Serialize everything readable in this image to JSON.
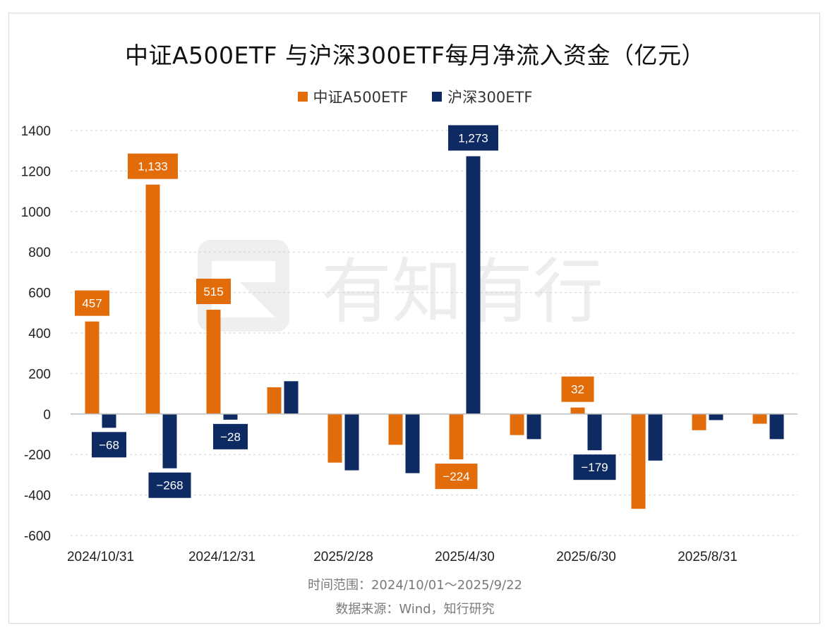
{
  "title": "中证A500ETF 与沪深300ETF每月净流入资金（亿元）",
  "footer": {
    "time_range": "时间范围：2024/10/01～2025/9/22",
    "source": "数据来源：Wind，知行研究"
  },
  "watermark": {
    "text": "有知有行"
  },
  "colors": {
    "a500": "#E36C0A",
    "hs300": "#0D2A63",
    "grid": "#d0d0d0",
    "axis": "#bdbdbd"
  },
  "chart_data": {
    "type": "bar",
    "title": "中证A500ETF 与沪深300ETF每月净流入资金（亿元）",
    "ylim": [
      -600,
      1400
    ],
    "yticks": [
      1400,
      1200,
      1000,
      800,
      600,
      400,
      200,
      0,
      -200,
      -400,
      -600
    ],
    "xtick_labels": [
      "2024/10/31",
      "",
      "2024/12/31",
      "",
      "2025/2/28",
      "",
      "2025/4/30",
      "",
      "2025/6/30",
      "",
      "2025/8/31",
      ""
    ],
    "categories": [
      "2024/10",
      "2024/11",
      "2024/12",
      "2025/1",
      "2025/2",
      "2025/3",
      "2025/4",
      "2025/5",
      "2025/6",
      "2025/7",
      "2025/8",
      "2025/9"
    ],
    "series": [
      {
        "name": "中证A500ETF",
        "values": [
          457,
          1133,
          515,
          132,
          -240,
          -152,
          -224,
          -104,
          32,
          -468,
          -80,
          -48
        ],
        "labels": [
          "457",
          "1,133",
          "515",
          "",
          "",
          "",
          "−224",
          "",
          "32",
          "",
          "",
          ""
        ]
      },
      {
        "name": "沪深300ETF",
        "values": [
          -68,
          -268,
          -28,
          162,
          -278,
          -292,
          1273,
          -124,
          -179,
          -230,
          -30,
          -124
        ],
        "labels": [
          "−68",
          "−268",
          "−28",
          "",
          "",
          "",
          "1,273",
          "",
          "−179",
          "",
          "",
          ""
        ]
      }
    ]
  }
}
